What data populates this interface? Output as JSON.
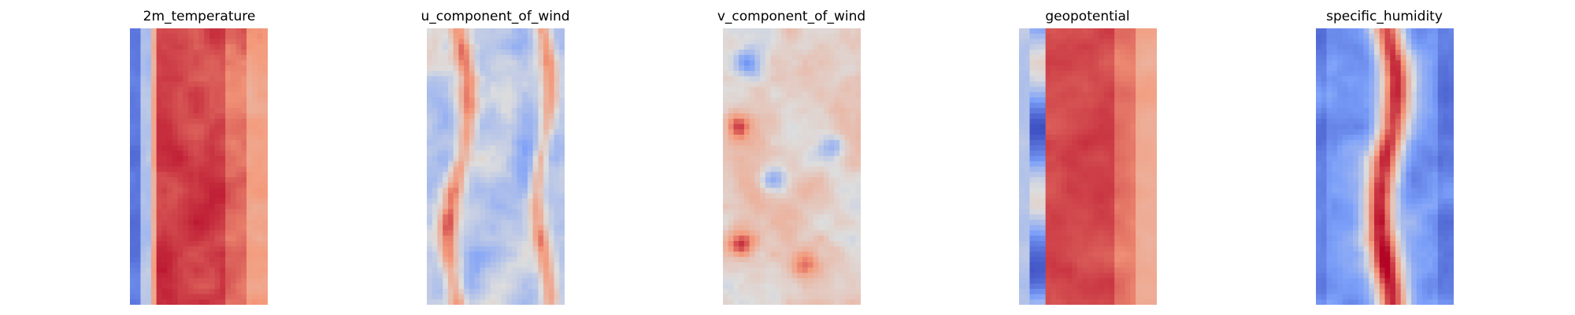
{
  "chart_data": [
    {
      "type": "heatmap",
      "title": "2m_temperature",
      "colormap": "coolwarm",
      "grid": false,
      "axes_visible": false,
      "description": "Vertical band: cool blue strip at far left edge, warm red/orange core occupying most of the panel, slightly lighter toward the right edge."
    },
    {
      "type": "heatmap",
      "title": "u_component_of_wind",
      "colormap": "coolwarm",
      "grid": false,
      "axes_visible": false,
      "description": "Mostly pale blue/gray field with wavy vertical red streaks near the left and right sides."
    },
    {
      "type": "heatmap",
      "title": "v_component_of_wind",
      "colormap": "coolwarm",
      "grid": false,
      "axes_visible": false,
      "description": "Near-neutral pale field with scattered light red patches, several dark red spots along the left side and a few blue blotches."
    },
    {
      "type": "heatmap",
      "title": "geopotential",
      "colormap": "coolwarm",
      "grid": false,
      "axes_visible": false,
      "description": "Blue/gray strip on the left edge, broad uniform red core, lighter toward the right edge."
    },
    {
      "type": "heatmap",
      "title": "specific_humidity",
      "colormap": "coolwarm",
      "grid": false,
      "axes_visible": false,
      "description": "Deep blue background with a narrow red/pink vertical band running through the center."
    }
  ],
  "colors": {
    "deep_blue": "#3b4cc0",
    "mid_blue": "#7b9ff9",
    "neutral": "#dddddd",
    "mid_red": "#f49a7b",
    "deep_red": "#b40426"
  }
}
